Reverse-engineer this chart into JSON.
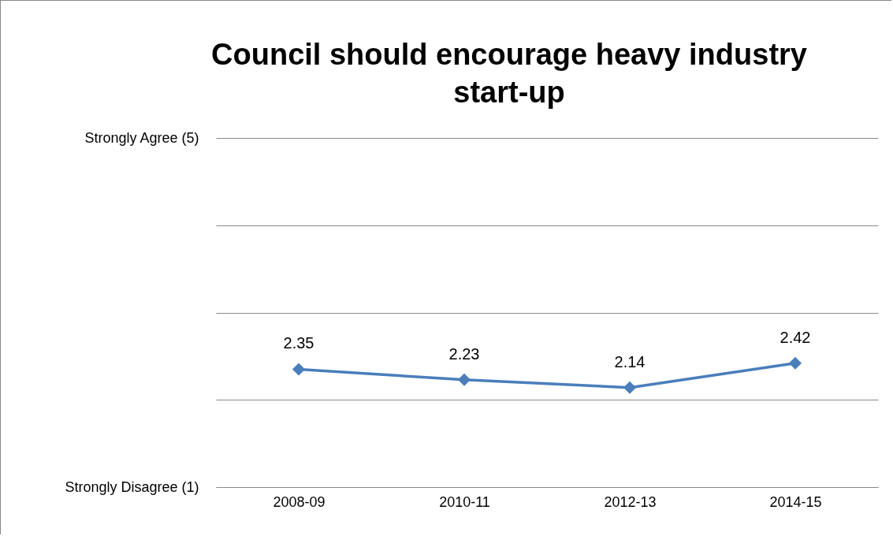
{
  "chart_data": {
    "type": "line",
    "title": "Council should encourage heavy industry start-up",
    "categories": [
      "2008-09",
      "2010-11",
      "2012-13",
      "2014-15"
    ],
    "series": [
      {
        "color": "#4a7ebb",
        "values": [
          2.35,
          2.23,
          2.14,
          2.42
        ]
      }
    ],
    "ylim": [
      1,
      5
    ],
    "yticks": [
      {
        "value": 1,
        "label": "Strongly Disagree (1)"
      },
      {
        "value": 2,
        "label": null
      },
      {
        "value": 3,
        "label": null
      },
      {
        "value": 4,
        "label": null
      },
      {
        "value": 5,
        "label": "Strongly Agree (5)"
      }
    ],
    "grid": "y",
    "marker": "diamond",
    "data_labels": true,
    "legend": false
  }
}
